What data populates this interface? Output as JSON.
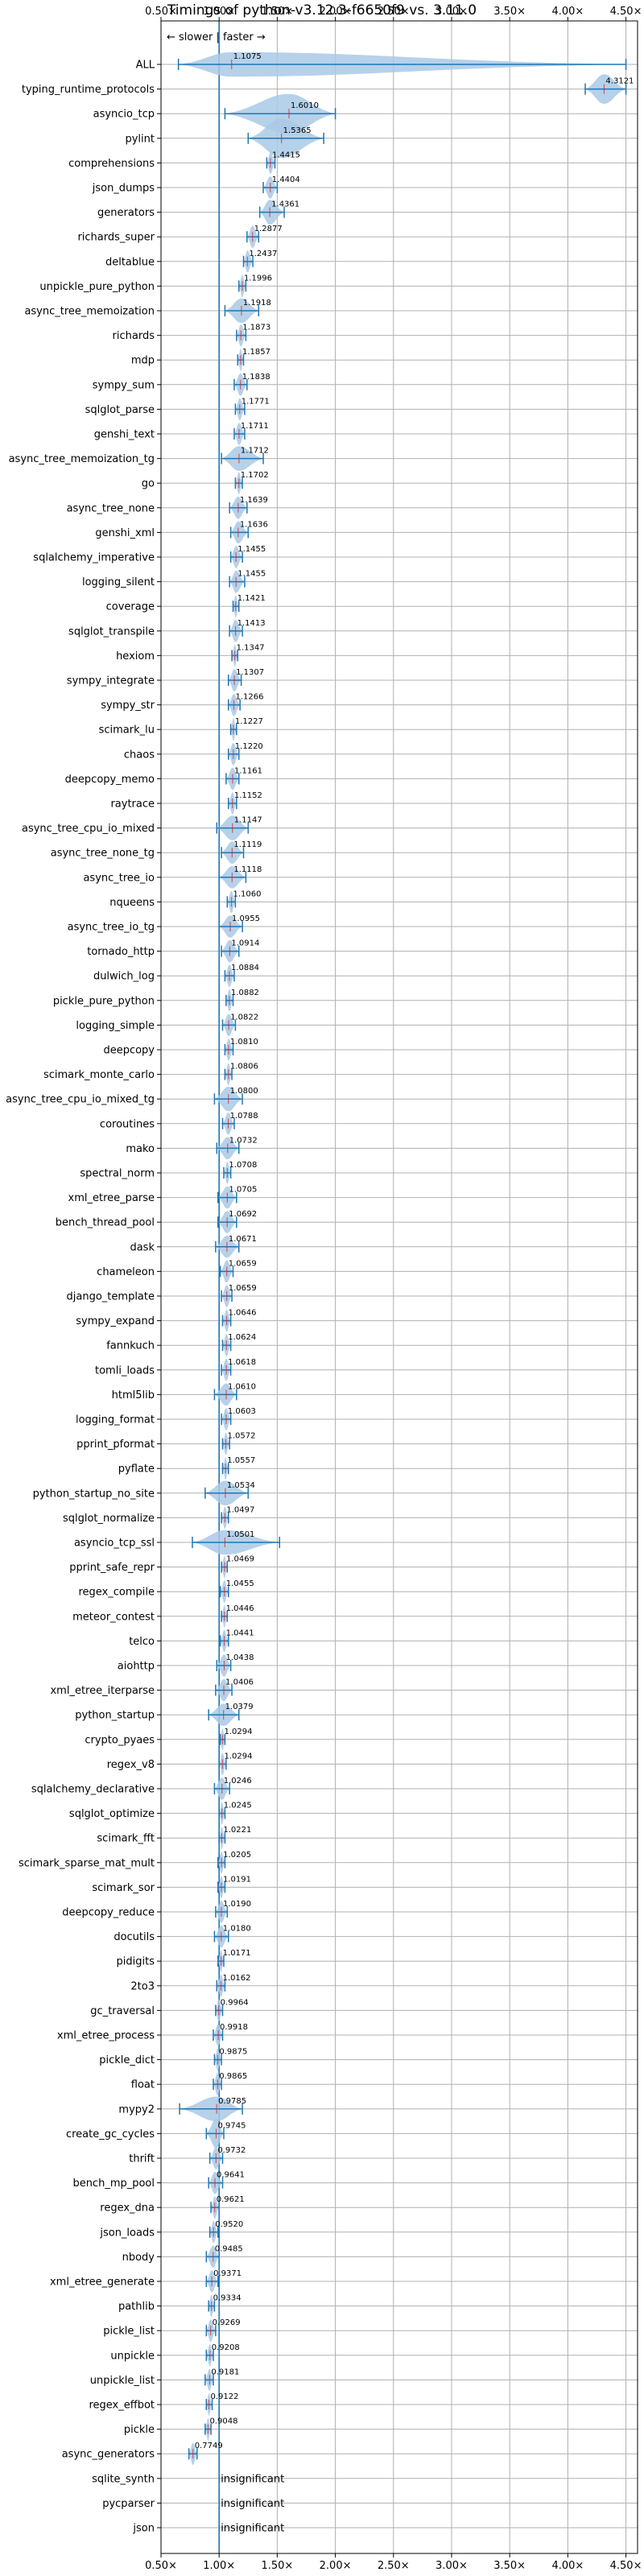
{
  "chart_data": {
    "type": "violin",
    "title": "Timings of python-v3.12.3-f6650f9 vs. 3.11.0",
    "direction_note": "← slower | faster →",
    "xlim": [
      0.5,
      4.6
    ],
    "xticks": [
      0.5,
      1.0,
      1.5,
      2.0,
      2.5,
      3.0,
      3.5,
      4.0,
      4.5
    ],
    "xtick_labels": [
      "0.50×",
      "1.00×",
      "1.50×",
      "2.00×",
      "2.50×",
      "3.00×",
      "3.50×",
      "4.00×",
      "4.50×"
    ],
    "reference_x": 1.0,
    "grid": true,
    "colors": {
      "violin": "#a9c9e6",
      "line": "#1f77b4",
      "median": "#d62728"
    },
    "benchmarks": [
      {
        "name": "ALL",
        "value": 1.1075,
        "label": "1.1075",
        "lo": 0.65,
        "hi": 4.5,
        "width": 0.5
      },
      {
        "name": "typing_runtime_protocols",
        "value": 4.3121,
        "label": "4.3121",
        "lo": 4.15,
        "hi": 4.5,
        "width": 0.6
      },
      {
        "name": "asyncio_tcp",
        "value": 1.601,
        "label": "1.6010",
        "lo": 1.05,
        "hi": 2.0,
        "width": 0.8
      },
      {
        "name": "pylint",
        "value": 1.5365,
        "label": "1.5365",
        "lo": 1.25,
        "hi": 1.9,
        "width": 0.8
      },
      {
        "name": "comprehensions",
        "value": 1.4415,
        "label": "1.4415",
        "lo": 1.41,
        "hi": 1.48,
        "width": 0.45
      },
      {
        "name": "json_dumps",
        "value": 1.4404,
        "label": "1.4404",
        "lo": 1.38,
        "hi": 1.5,
        "width": 0.45
      },
      {
        "name": "generators",
        "value": 1.4361,
        "label": "1.4361",
        "lo": 1.35,
        "hi": 1.56,
        "width": 0.5
      },
      {
        "name": "richards_super",
        "value": 1.2877,
        "label": "1.2877",
        "lo": 1.24,
        "hi": 1.34,
        "width": 0.45
      },
      {
        "name": "deltablue",
        "value": 1.2437,
        "label": "1.2437",
        "lo": 1.21,
        "hi": 1.29,
        "width": 0.45
      },
      {
        "name": "unpickle_pure_python",
        "value": 1.1996,
        "label": "1.1996",
        "lo": 1.17,
        "hi": 1.23,
        "width": 0.45
      },
      {
        "name": "async_tree_memoization",
        "value": 1.1918,
        "label": "1.1918",
        "lo": 1.05,
        "hi": 1.34,
        "width": 0.5
      },
      {
        "name": "richards",
        "value": 1.1873,
        "label": "1.1873",
        "lo": 1.15,
        "hi": 1.23,
        "width": 0.45
      },
      {
        "name": "mdp",
        "value": 1.1857,
        "label": "1.1857",
        "lo": 1.16,
        "hi": 1.21,
        "width": 0.45
      },
      {
        "name": "sympy_sum",
        "value": 1.1838,
        "label": "1.1838",
        "lo": 1.13,
        "hi": 1.24,
        "width": 0.45
      },
      {
        "name": "sqlglot_parse",
        "value": 1.1771,
        "label": "1.1771",
        "lo": 1.14,
        "hi": 1.22,
        "width": 0.45
      },
      {
        "name": "genshi_text",
        "value": 1.1711,
        "label": "1.1711",
        "lo": 1.13,
        "hi": 1.22,
        "width": 0.45
      },
      {
        "name": "async_tree_memoization_tg",
        "value": 1.1712,
        "label": "1.1712",
        "lo": 1.02,
        "hi": 1.38,
        "width": 0.5
      },
      {
        "name": "go",
        "value": 1.1702,
        "label": "1.1702",
        "lo": 1.14,
        "hi": 1.2,
        "width": 0.45
      },
      {
        "name": "async_tree_none",
        "value": 1.1639,
        "label": "1.1639",
        "lo": 1.09,
        "hi": 1.24,
        "width": 0.45
      },
      {
        "name": "genshi_xml",
        "value": 1.1636,
        "label": "1.1636",
        "lo": 1.1,
        "hi": 1.25,
        "width": 0.45
      },
      {
        "name": "sqlalchemy_imperative",
        "value": 1.1455,
        "label": "1.1455",
        "lo": 1.1,
        "hi": 1.2,
        "width": 0.45
      },
      {
        "name": "logging_silent",
        "value": 1.1455,
        "label": "1.1455",
        "lo": 1.09,
        "hi": 1.22,
        "width": 0.45
      },
      {
        "name": "coverage",
        "value": 1.1421,
        "label": "1.1421",
        "lo": 1.12,
        "hi": 1.17,
        "width": 0.45
      },
      {
        "name": "sqlglot_transpile",
        "value": 1.1413,
        "label": "1.1413",
        "lo": 1.09,
        "hi": 1.2,
        "width": 0.45
      },
      {
        "name": "hexiom",
        "value": 1.1347,
        "label": "1.1347",
        "lo": 1.11,
        "hi": 1.16,
        "width": 0.45
      },
      {
        "name": "sympy_integrate",
        "value": 1.1307,
        "label": "1.1307",
        "lo": 1.08,
        "hi": 1.19,
        "width": 0.45
      },
      {
        "name": "sympy_str",
        "value": 1.1266,
        "label": "1.1266",
        "lo": 1.08,
        "hi": 1.18,
        "width": 0.45
      },
      {
        "name": "scimark_lu",
        "value": 1.1227,
        "label": "1.1227",
        "lo": 1.1,
        "hi": 1.15,
        "width": 0.45
      },
      {
        "name": "chaos",
        "value": 1.122,
        "label": "1.1220",
        "lo": 1.08,
        "hi": 1.17,
        "width": 0.45
      },
      {
        "name": "deepcopy_memo",
        "value": 1.1161,
        "label": "1.1161",
        "lo": 1.06,
        "hi": 1.17,
        "width": 0.45
      },
      {
        "name": "raytrace",
        "value": 1.1152,
        "label": "1.1152",
        "lo": 1.08,
        "hi": 1.15,
        "width": 0.45
      },
      {
        "name": "async_tree_cpu_io_mixed",
        "value": 1.1147,
        "label": "1.1147",
        "lo": 0.98,
        "hi": 1.25,
        "width": 0.5
      },
      {
        "name": "async_tree_none_tg",
        "value": 1.1119,
        "label": "1.1119",
        "lo": 1.02,
        "hi": 1.21,
        "width": 0.45
      },
      {
        "name": "async_tree_io",
        "value": 1.1118,
        "label": "1.1118",
        "lo": 1.0,
        "hi": 1.23,
        "width": 0.45
      },
      {
        "name": "nqueens",
        "value": 1.106,
        "label": "1.1060",
        "lo": 1.07,
        "hi": 1.14,
        "width": 0.45
      },
      {
        "name": "async_tree_io_tg",
        "value": 1.0955,
        "label": "1.0955",
        "lo": 1.0,
        "hi": 1.2,
        "width": 0.45
      },
      {
        "name": "tornado_http",
        "value": 1.0914,
        "label": "1.0914",
        "lo": 1.02,
        "hi": 1.17,
        "width": 0.45
      },
      {
        "name": "dulwich_log",
        "value": 1.0884,
        "label": "1.0884",
        "lo": 1.05,
        "hi": 1.13,
        "width": 0.45
      },
      {
        "name": "pickle_pure_python",
        "value": 1.0882,
        "label": "1.0882",
        "lo": 1.06,
        "hi": 1.12,
        "width": 0.45
      },
      {
        "name": "logging_simple",
        "value": 1.0822,
        "label": "1.0822",
        "lo": 1.03,
        "hi": 1.14,
        "width": 0.45
      },
      {
        "name": "deepcopy",
        "value": 1.081,
        "label": "1.0810",
        "lo": 1.05,
        "hi": 1.12,
        "width": 0.45
      },
      {
        "name": "scimark_monte_carlo",
        "value": 1.0806,
        "label": "1.0806",
        "lo": 1.05,
        "hi": 1.11,
        "width": 0.45
      },
      {
        "name": "async_tree_cpu_io_mixed_tg",
        "value": 1.08,
        "label": "1.0800",
        "lo": 0.96,
        "hi": 1.2,
        "width": 0.5
      },
      {
        "name": "coroutines",
        "value": 1.0788,
        "label": "1.0788",
        "lo": 1.03,
        "hi": 1.13,
        "width": 0.45
      },
      {
        "name": "mako",
        "value": 1.0732,
        "label": "1.0732",
        "lo": 0.98,
        "hi": 1.17,
        "width": 0.45
      },
      {
        "name": "spectral_norm",
        "value": 1.0708,
        "label": "1.0708",
        "lo": 1.04,
        "hi": 1.1,
        "width": 0.45
      },
      {
        "name": "xml_etree_parse",
        "value": 1.0705,
        "label": "1.0705",
        "lo": 0.99,
        "hi": 1.15,
        "width": 0.45
      },
      {
        "name": "bench_thread_pool",
        "value": 1.0692,
        "label": "1.0692",
        "lo": 0.99,
        "hi": 1.15,
        "width": 0.45
      },
      {
        "name": "dask",
        "value": 1.0671,
        "label": "1.0671",
        "lo": 0.97,
        "hi": 1.17,
        "width": 0.45
      },
      {
        "name": "chameleon",
        "value": 1.0659,
        "label": "1.0659",
        "lo": 1.01,
        "hi": 1.12,
        "width": 0.45
      },
      {
        "name": "django_template",
        "value": 1.0659,
        "label": "1.0659",
        "lo": 1.02,
        "hi": 1.11,
        "width": 0.45
      },
      {
        "name": "sympy_expand",
        "value": 1.0646,
        "label": "1.0646",
        "lo": 1.03,
        "hi": 1.1,
        "width": 0.45
      },
      {
        "name": "fannkuch",
        "value": 1.0624,
        "label": "1.0624",
        "lo": 1.03,
        "hi": 1.1,
        "width": 0.45
      },
      {
        "name": "tomli_loads",
        "value": 1.0618,
        "label": "1.0618",
        "lo": 1.02,
        "hi": 1.1,
        "width": 0.45
      },
      {
        "name": "html5lib",
        "value": 1.061,
        "label": "1.0610",
        "lo": 0.96,
        "hi": 1.15,
        "width": 0.45
      },
      {
        "name": "logging_format",
        "value": 1.0603,
        "label": "1.0603",
        "lo": 1.02,
        "hi": 1.1,
        "width": 0.45
      },
      {
        "name": "pprint_pformat",
        "value": 1.0572,
        "label": "1.0572",
        "lo": 1.03,
        "hi": 1.09,
        "width": 0.45
      },
      {
        "name": "pyflate",
        "value": 1.0557,
        "label": "1.0557",
        "lo": 1.03,
        "hi": 1.08,
        "width": 0.45
      },
      {
        "name": "python_startup_no_site",
        "value": 1.0534,
        "label": "1.0534",
        "lo": 0.88,
        "hi": 1.25,
        "width": 0.5
      },
      {
        "name": "sqlglot_normalize",
        "value": 1.0497,
        "label": "1.0497",
        "lo": 1.02,
        "hi": 1.08,
        "width": 0.45
      },
      {
        "name": "asyncio_tcp_ssl",
        "value": 1.0501,
        "label": "1.0501",
        "lo": 0.77,
        "hi": 1.52,
        "width": 0.5
      },
      {
        "name": "pprint_safe_repr",
        "value": 1.0469,
        "label": "1.0469",
        "lo": 1.02,
        "hi": 1.07,
        "width": 0.45
      },
      {
        "name": "regex_compile",
        "value": 1.0455,
        "label": "1.0455",
        "lo": 1.01,
        "hi": 1.08,
        "width": 0.45
      },
      {
        "name": "meteor_contest",
        "value": 1.0446,
        "label": "1.0446",
        "lo": 1.02,
        "hi": 1.07,
        "width": 0.45
      },
      {
        "name": "telco",
        "value": 1.0441,
        "label": "1.0441",
        "lo": 1.01,
        "hi": 1.08,
        "width": 0.45
      },
      {
        "name": "aiohttp",
        "value": 1.0438,
        "label": "1.0438",
        "lo": 0.98,
        "hi": 1.1,
        "width": 0.45
      },
      {
        "name": "xml_etree_iterparse",
        "value": 1.0406,
        "label": "1.0406",
        "lo": 0.97,
        "hi": 1.11,
        "width": 0.45
      },
      {
        "name": "python_startup",
        "value": 1.0379,
        "label": "1.0379",
        "lo": 0.91,
        "hi": 1.17,
        "width": 0.45
      },
      {
        "name": "crypto_pyaes",
        "value": 1.0294,
        "label": "1.0294",
        "lo": 1.01,
        "hi": 1.05,
        "width": 0.45
      },
      {
        "name": "regex_v8",
        "value": 1.0294,
        "label": "1.0294",
        "lo": 1.0,
        "hi": 1.06,
        "width": 0.45
      },
      {
        "name": "sqlalchemy_declarative",
        "value": 1.0246,
        "label": "1.0246",
        "lo": 0.96,
        "hi": 1.09,
        "width": 0.45
      },
      {
        "name": "sqlglot_optimize",
        "value": 1.0245,
        "label": "1.0245",
        "lo": 1.0,
        "hi": 1.05,
        "width": 0.45
      },
      {
        "name": "scimark_fft",
        "value": 1.0221,
        "label": "1.0221",
        "lo": 1.0,
        "hi": 1.05,
        "width": 0.45
      },
      {
        "name": "scimark_sparse_mat_mult",
        "value": 1.0205,
        "label": "1.0205",
        "lo": 0.99,
        "hi": 1.05,
        "width": 0.45
      },
      {
        "name": "scimark_sor",
        "value": 1.0191,
        "label": "1.0191",
        "lo": 0.99,
        "hi": 1.05,
        "width": 0.45
      },
      {
        "name": "deepcopy_reduce",
        "value": 1.019,
        "label": "1.0190",
        "lo": 0.97,
        "hi": 1.07,
        "width": 0.45
      },
      {
        "name": "docutils",
        "value": 1.018,
        "label": "1.0180",
        "lo": 0.96,
        "hi": 1.08,
        "width": 0.45
      },
      {
        "name": "pidigits",
        "value": 1.0171,
        "label": "1.0171",
        "lo": 0.99,
        "hi": 1.04,
        "width": 0.45
      },
      {
        "name": "2to3",
        "value": 1.0162,
        "label": "1.0162",
        "lo": 0.98,
        "hi": 1.05,
        "width": 0.45
      },
      {
        "name": "gc_traversal",
        "value": 0.9964,
        "label": "0.9964",
        "lo": 0.97,
        "hi": 1.03,
        "width": 0.45
      },
      {
        "name": "xml_etree_process",
        "value": 0.9918,
        "label": "0.9918",
        "lo": 0.95,
        "hi": 1.03,
        "width": 0.45
      },
      {
        "name": "pickle_dict",
        "value": 0.9875,
        "label": "0.9875",
        "lo": 0.96,
        "hi": 1.02,
        "width": 0.45
      },
      {
        "name": "float",
        "value": 0.9865,
        "label": "0.9865",
        "lo": 0.95,
        "hi": 1.02,
        "width": 0.45
      },
      {
        "name": "mypy2",
        "value": 0.9785,
        "label": "0.9785",
        "lo": 0.66,
        "hi": 1.2,
        "width": 0.5
      },
      {
        "name": "create_gc_cycles",
        "value": 0.9745,
        "label": "0.9745",
        "lo": 0.89,
        "hi": 1.04,
        "width": 0.6
      },
      {
        "name": "thrift",
        "value": 0.9732,
        "label": "0.9732",
        "lo": 0.92,
        "hi": 1.03,
        "width": 0.45
      },
      {
        "name": "bench_mp_pool",
        "value": 0.9641,
        "label": "0.9641",
        "lo": 0.91,
        "hi": 1.03,
        "width": 0.45
      },
      {
        "name": "regex_dna",
        "value": 0.9621,
        "label": "0.9621",
        "lo": 0.93,
        "hi": 1.0,
        "width": 0.45
      },
      {
        "name": "json_loads",
        "value": 0.952,
        "label": "0.9520",
        "lo": 0.92,
        "hi": 0.99,
        "width": 0.45
      },
      {
        "name": "nbody",
        "value": 0.9485,
        "label": "0.9485",
        "lo": 0.89,
        "hi": 1.0,
        "width": 0.45
      },
      {
        "name": "xml_etree_generate",
        "value": 0.9371,
        "label": "0.9371",
        "lo": 0.89,
        "hi": 0.99,
        "width": 0.45
      },
      {
        "name": "pathlib",
        "value": 0.9334,
        "label": "0.9334",
        "lo": 0.91,
        "hi": 0.96,
        "width": 0.45
      },
      {
        "name": "pickle_list",
        "value": 0.9269,
        "label": "0.9269",
        "lo": 0.89,
        "hi": 0.97,
        "width": 0.45
      },
      {
        "name": "unpickle",
        "value": 0.9208,
        "label": "0.9208",
        "lo": 0.89,
        "hi": 0.95,
        "width": 0.45
      },
      {
        "name": "unpickle_list",
        "value": 0.9181,
        "label": "0.9181",
        "lo": 0.88,
        "hi": 0.95,
        "width": 0.45
      },
      {
        "name": "regex_effbot",
        "value": 0.9122,
        "label": "0.9122",
        "lo": 0.89,
        "hi": 0.94,
        "width": 0.45
      },
      {
        "name": "pickle",
        "value": 0.9048,
        "label": "0.9048",
        "lo": 0.88,
        "hi": 0.93,
        "width": 0.45
      },
      {
        "name": "async_generators",
        "value": 0.7749,
        "label": "0.7749",
        "lo": 0.74,
        "hi": 0.81,
        "width": 0.45
      },
      {
        "name": "sqlite_synth",
        "value": null,
        "label": "insignificant"
      },
      {
        "name": "pycparser",
        "value": null,
        "label": "insignificant"
      },
      {
        "name": "json",
        "value": null,
        "label": "insignificant"
      }
    ]
  }
}
